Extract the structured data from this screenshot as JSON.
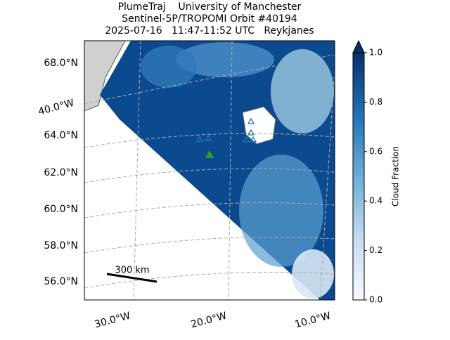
{
  "chart_data": {
    "type": "map",
    "title_lines": [
      "PlumeTraj    University of Manchester",
      "Sentinel-5P/TROPOMI Orbit #40194",
      "2025-07-16   11:47-11:52 UTC   Reykjanes"
    ],
    "lat_labels": [
      "68.0°N",
      "64.0°N",
      "62.0°N",
      "60.0°N",
      "58.0°N",
      "56.0°N"
    ],
    "lon_labels": [
      "40.0°W",
      "30.0°W",
      "20.0°W",
      "10.0°W"
    ],
    "scale_bar_label": "300 km",
    "colorbar": {
      "label": "Cloud Fraction",
      "lim": [
        0,
        1
      ],
      "ticks": [
        {
          "value": 0,
          "label": "0.0"
        },
        {
          "value": 0.2,
          "label": "0.2"
        },
        {
          "value": 0.4,
          "label": "0.4"
        },
        {
          "value": 0.6,
          "label": "0.6"
        },
        {
          "value": 0.8,
          "label": "0.8"
        },
        {
          "value": 1,
          "label": "1.0"
        }
      ]
    }
  }
}
